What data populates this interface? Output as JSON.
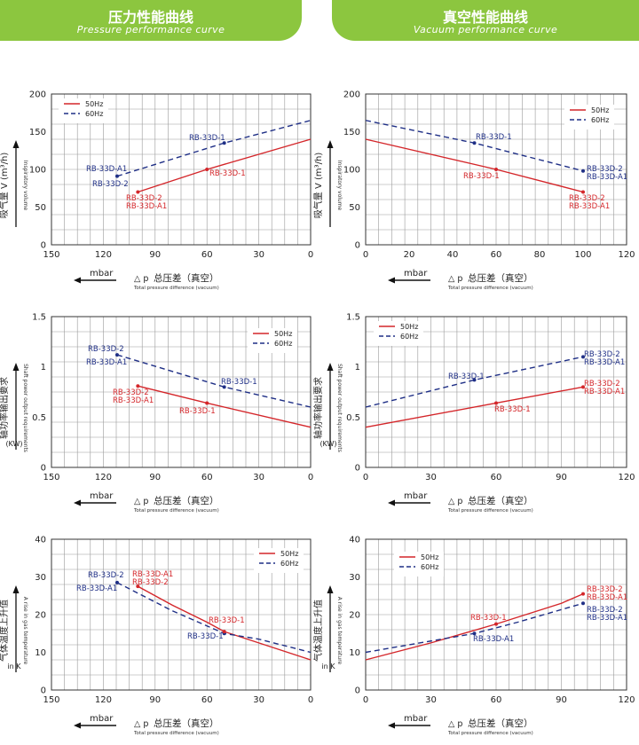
{
  "header": {
    "left": {
      "title": "压力性能曲线",
      "subtitle": "Pressure performance curve"
    },
    "right": {
      "title": "真空性能曲线",
      "subtitle": "Vacuum performance curve"
    }
  },
  "colors": {
    "hz50": "#d4262a",
    "hz60": "#1f2f86",
    "banner": "#8cc63f",
    "grid": "#9a9a9a"
  },
  "chart_data": [
    {
      "type": "line",
      "xlabel_symbol": "△ p",
      "xlabel_zh": "总压差（真空）",
      "xlabel_en": "Total pressure difference (vacuum)",
      "unit": "mbar",
      "ylabel_zh": "吸气量 V (m³/h)",
      "ylabel_en": "Inspiratory volume",
      "xlim": [
        150,
        0
      ],
      "ylim": [
        0,
        200
      ],
      "xticks": [
        150,
        120,
        90,
        60,
        30,
        0
      ],
      "yticks": [
        0,
        50,
        100,
        150,
        200
      ],
      "legend": "top-left",
      "series": [
        {
          "name": "50Hz",
          "style": "solid",
          "x": [
            100,
            60,
            0
          ],
          "y": [
            70,
            100,
            140
          ]
        },
        {
          "name": "60Hz",
          "style": "dashed",
          "x": [
            112,
            50,
            0
          ],
          "y": [
            91,
            135,
            165
          ]
        }
      ],
      "annotations": [
        {
          "text": "RB-33D-1",
          "series": 1
        },
        {
          "text": "RB-33D-A1",
          "series": 1
        },
        {
          "text": "RB-33D-2",
          "series": 1
        },
        {
          "text": "RB-33D-1",
          "series": 0
        },
        {
          "text": "RB-33D-2",
          "series": 0
        },
        {
          "text": "RB-33D-A1",
          "series": 0
        }
      ]
    },
    {
      "type": "line",
      "xlabel_symbol": "△ p",
      "xlabel_zh": "总压差（真空）",
      "xlabel_en": "Total pressure difference (vacuum)",
      "unit": "mbar",
      "ylabel_zh": "吸气量 V (m³/h)",
      "ylabel_en": "Inspiratory volume",
      "xlim": [
        0,
        120
      ],
      "ylim": [
        0,
        200
      ],
      "xticks": [
        0,
        20,
        40,
        60,
        80,
        100,
        120
      ],
      "yticks": [
        0,
        50,
        100,
        150,
        200
      ],
      "legend": "top-right",
      "series": [
        {
          "name": "50Hz",
          "style": "solid",
          "x": [
            0,
            60,
            100
          ],
          "y": [
            140,
            100,
            70
          ]
        },
        {
          "name": "60Hz",
          "style": "dashed",
          "x": [
            0,
            50,
            100
          ],
          "y": [
            165,
            135,
            98
          ]
        }
      ],
      "annotations": [
        {
          "text": "RB-33D-1",
          "series": 1
        },
        {
          "text": "RB-33D-1",
          "series": 0
        },
        {
          "text": "RB-33D-2",
          "series": 1
        },
        {
          "text": "RB-33D-A1",
          "series": 1
        },
        {
          "text": "RB-33D-2",
          "series": 0
        },
        {
          "text": "RB-33D-A1",
          "series": 0
        }
      ]
    },
    {
      "type": "line",
      "xlabel_symbol": "△ p",
      "xlabel_zh": "总压差（真空）",
      "xlabel_en": "Total pressure difference (vacuum)",
      "unit": "mbar",
      "ylabel_zh": "轴功率输出要求",
      "ylabel_en": "Shaft power output requirements",
      "ylabel_unit": "(KW)",
      "xlim": [
        150,
        0
      ],
      "ylim": [
        0,
        1.5
      ],
      "xticks": [
        150,
        120,
        90,
        60,
        30,
        0
      ],
      "yticks": [
        0,
        0.5,
        1,
        1.5
      ],
      "legend": "top-right",
      "series": [
        {
          "name": "50Hz",
          "style": "solid",
          "x": [
            100,
            60,
            0
          ],
          "y": [
            0.81,
            0.64,
            0.4
          ]
        },
        {
          "name": "60Hz",
          "style": "dashed",
          "x": [
            112,
            50,
            0
          ],
          "y": [
            1.12,
            0.8,
            0.6
          ]
        }
      ],
      "annotations": [
        {
          "text": "RB-33D-2",
          "series": 1
        },
        {
          "text": "RB-33D-A1",
          "series": 1
        },
        {
          "text": "RB-33D-1",
          "series": 1
        },
        {
          "text": "RB-33D-2",
          "series": 0
        },
        {
          "text": "RB-33D-A1",
          "series": 0
        },
        {
          "text": "RB-33D-1",
          "series": 0
        }
      ]
    },
    {
      "type": "line",
      "xlabel_symbol": "△ p",
      "xlabel_zh": "总压差（真空）",
      "xlabel_en": "Total pressure difference (vacuum)",
      "unit": "mbar",
      "ylabel_zh": "轴功率输出要求",
      "ylabel_en": "Shaft power output requirements",
      "ylabel_unit": "(KW)",
      "xlim": [
        0,
        120
      ],
      "ylim": [
        0,
        1.5
      ],
      "xticks": [
        0,
        30,
        60,
        90,
        120
      ],
      "yticks": [
        0,
        0.5,
        1,
        1.5
      ],
      "legend": "top-left",
      "series": [
        {
          "name": "50Hz",
          "style": "solid",
          "x": [
            0,
            60,
            100
          ],
          "y": [
            0.4,
            0.64,
            0.8
          ]
        },
        {
          "name": "60Hz",
          "style": "dashed",
          "x": [
            0,
            50,
            100
          ],
          "y": [
            0.6,
            0.87,
            1.1
          ]
        }
      ],
      "annotations": [
        {
          "text": "RB-33D-1",
          "series": 1
        },
        {
          "text": "RB-33D-1",
          "series": 0
        },
        {
          "text": "RB-33D-2",
          "series": 1
        },
        {
          "text": "RB-33D-A1",
          "series": 1
        },
        {
          "text": "RB-33D-2",
          "series": 0
        },
        {
          "text": "RB-33D-A1",
          "series": 0
        }
      ]
    },
    {
      "type": "line",
      "xlabel_symbol": "△ p",
      "xlabel_zh": "总压差（真空）",
      "xlabel_en": "Total pressure difference (vacuum)",
      "unit": "mbar",
      "ylabel_zh": "气体温度上升值",
      "ylabel_en": "A rise in gas temperature",
      "ylabel_unit": "in K",
      "xlim": [
        150,
        0
      ],
      "ylim": [
        0,
        40
      ],
      "xticks": [
        150,
        120,
        90,
        60,
        30,
        0
      ],
      "yticks": [
        0,
        10,
        20,
        30,
        40
      ],
      "legend": "top-right",
      "series": [
        {
          "name": "50Hz",
          "style": "solid",
          "x": [
            100,
            80,
            60,
            50,
            30,
            0
          ],
          "y": [
            27.5,
            22.5,
            18,
            15.5,
            12.5,
            8
          ]
        },
        {
          "name": "60Hz",
          "style": "dashed",
          "x": [
            112,
            80,
            60,
            50,
            30,
            0
          ],
          "y": [
            28.5,
            21,
            17,
            15,
            13.5,
            10
          ]
        }
      ],
      "annotations": [
        {
          "text": "RB-33D-2",
          "series": 1
        },
        {
          "text": "RB-33D-A1",
          "series": 1
        },
        {
          "text": "RB-33D-A1",
          "series": 0
        },
        {
          "text": "RB-33D-2",
          "series": 0
        },
        {
          "text": "RB-33D-1",
          "series": 0
        },
        {
          "text": "RB-33D-1",
          "series": 1
        }
      ]
    },
    {
      "type": "line",
      "xlabel_symbol": "△ p",
      "xlabel_zh": "总压差（真空）",
      "xlabel_en": "Total pressure difference (vacuum)",
      "unit": "mbar",
      "ylabel_zh": "气体温度上升值",
      "ylabel_en": "A rise in gas temperature",
      "ylabel_unit": "in K",
      "xlim": [
        0,
        120
      ],
      "ylim": [
        0,
        40
      ],
      "xticks": [
        0,
        30,
        60,
        90,
        120
      ],
      "yticks": [
        0,
        10,
        20,
        30,
        40
      ],
      "legend": "top-left",
      "series": [
        {
          "name": "50Hz",
          "style": "solid",
          "x": [
            0,
            30,
            60,
            90,
            100
          ],
          "y": [
            8,
            12.5,
            17.5,
            23,
            25.5
          ]
        },
        {
          "name": "60Hz",
          "style": "dashed",
          "x": [
            0,
            30,
            50,
            70,
            100
          ],
          "y": [
            10,
            13,
            15,
            18,
            23
          ]
        }
      ],
      "annotations": [
        {
          "text": "RB-33D-1",
          "series": 0
        },
        {
          "text": "RB-33D-A1",
          "series": 1
        },
        {
          "text": "RB-33D-2",
          "series": 0
        },
        {
          "text": "RB-33D-A1",
          "series": 0
        },
        {
          "text": "RB-33D-2",
          "series": 1
        },
        {
          "text": "RB-33D-A1",
          "series": 1
        }
      ]
    }
  ]
}
